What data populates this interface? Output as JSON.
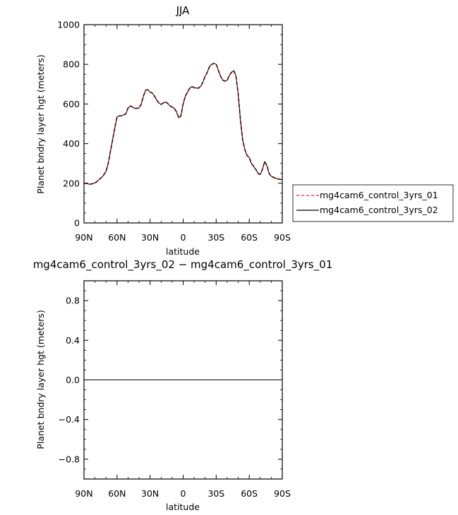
{
  "chart_data": [
    {
      "type": "line",
      "title": "JJA",
      "xlabel": "latitude",
      "ylabel": "Planet bndry layer hgt (meters)",
      "xlim": [
        90,
        -90
      ],
      "ylim": [
        0,
        1000
      ],
      "xticks": [
        90,
        60,
        30,
        0,
        -30,
        -60,
        -90
      ],
      "xtick_labels": [
        "90N",
        "60N",
        "30N",
        "0",
        "30S",
        "60S",
        "90S"
      ],
      "yticks": [
        0,
        200,
        400,
        600,
        800,
        1000
      ],
      "ytick_labels": [
        "0",
        "200",
        "400",
        "600",
        "800",
        "1000"
      ],
      "legend": {
        "placement": "right",
        "entries": [
          "mg4cam6_control_3yrs_01",
          "mg4cam6_control_3yrs_02"
        ]
      },
      "series": [
        {
          "name": "mg4cam6_control_3yrs_01",
          "color": "#e8292b",
          "style": "dashed",
          "x": [
            90,
            88,
            85,
            82,
            79,
            76,
            73,
            70,
            68,
            66,
            64,
            62,
            60,
            58,
            56,
            54,
            52,
            50,
            48,
            46,
            44,
            42,
            40,
            38,
            36,
            34,
            32,
            30,
            28,
            26,
            24,
            22,
            20,
            18,
            16,
            14,
            12,
            10,
            8,
            6,
            4,
            2,
            0,
            -2,
            -4,
            -6,
            -8,
            -10,
            -12,
            -14,
            -16,
            -18,
            -20,
            -22,
            -24,
            -26,
            -28,
            -30,
            -32,
            -34,
            -36,
            -38,
            -40,
            -42,
            -44,
            -46,
            -48,
            -50,
            -52,
            -54,
            -56,
            -58,
            -60,
            -62,
            -64,
            -66,
            -68,
            -70,
            -72,
            -74,
            -76,
            -78,
            -80,
            -82,
            -84,
            -86,
            -88,
            -90
          ],
          "y": [
            200,
            200,
            195,
            198,
            205,
            220,
            235,
            260,
            300,
            360,
            420,
            480,
            535,
            540,
            540,
            545,
            550,
            580,
            590,
            585,
            578,
            578,
            580,
            600,
            640,
            670,
            672,
            660,
            655,
            640,
            620,
            605,
            598,
            605,
            610,
            603,
            590,
            585,
            578,
            560,
            530,
            540,
            600,
            640,
            660,
            680,
            688,
            682,
            680,
            680,
            690,
            710,
            740,
            760,
            790,
            800,
            805,
            800,
            770,
            740,
            720,
            715,
            720,
            745,
            760,
            768,
            740,
            650,
            520,
            420,
            370,
            340,
            330,
            300,
            285,
            270,
            250,
            245,
            270,
            310,
            290,
            250,
            235,
            230,
            225,
            222,
            220,
            218
          ]
        },
        {
          "name": "mg4cam6_control_3yrs_02",
          "color": "#000000",
          "style": "solid",
          "x": [
            90,
            88,
            85,
            82,
            79,
            76,
            73,
            70,
            68,
            66,
            64,
            62,
            60,
            58,
            56,
            54,
            52,
            50,
            48,
            46,
            44,
            42,
            40,
            38,
            36,
            34,
            32,
            30,
            28,
            26,
            24,
            22,
            20,
            18,
            16,
            14,
            12,
            10,
            8,
            6,
            4,
            2,
            0,
            -2,
            -4,
            -6,
            -8,
            -10,
            -12,
            -14,
            -16,
            -18,
            -20,
            -22,
            -24,
            -26,
            -28,
            -30,
            -32,
            -34,
            -36,
            -38,
            -40,
            -42,
            -44,
            -46,
            -48,
            -50,
            -52,
            -54,
            -56,
            -58,
            -60,
            -62,
            -64,
            -66,
            -68,
            -70,
            -72,
            -74,
            -76,
            -78,
            -80,
            -82,
            -84,
            -86,
            -88,
            -90
          ],
          "y": [
            200,
            200,
            195,
            198,
            205,
            220,
            235,
            260,
            300,
            360,
            420,
            480,
            535,
            540,
            540,
            545,
            550,
            580,
            590,
            585,
            578,
            578,
            580,
            600,
            640,
            670,
            672,
            660,
            655,
            640,
            620,
            605,
            598,
            605,
            610,
            603,
            590,
            585,
            578,
            560,
            530,
            540,
            600,
            640,
            660,
            680,
            688,
            682,
            680,
            680,
            690,
            710,
            740,
            760,
            790,
            800,
            805,
            800,
            770,
            740,
            720,
            715,
            720,
            745,
            760,
            768,
            740,
            650,
            520,
            420,
            370,
            340,
            330,
            300,
            285,
            270,
            250,
            245,
            270,
            310,
            290,
            250,
            235,
            230,
            225,
            222,
            220,
            218
          ]
        }
      ]
    },
    {
      "type": "line",
      "title": "mg4cam6_control_3yrs_02 − mg4cam6_control_3yrs_01",
      "xlabel": "latitude",
      "ylabel": "Planet bndry layer hgt (meters)",
      "xlim": [
        90,
        -90
      ],
      "ylim": [
        -1,
        1
      ],
      "xticks": [
        90,
        60,
        30,
        0,
        -30,
        -60,
        -90
      ],
      "xtick_labels": [
        "90N",
        "60N",
        "30N",
        "0",
        "30S",
        "60S",
        "90S"
      ],
      "yticks": [
        -0.8,
        -0.4,
        0.0,
        0.4,
        0.8
      ],
      "ytick_labels": [
        "−0.8",
        "−0.4",
        "0.0",
        "0.4",
        "0.8"
      ],
      "series": [
        {
          "color": "#000000",
          "style": "solid",
          "x": [
            90,
            -90
          ],
          "y": [
            0,
            0
          ]
        }
      ]
    }
  ]
}
